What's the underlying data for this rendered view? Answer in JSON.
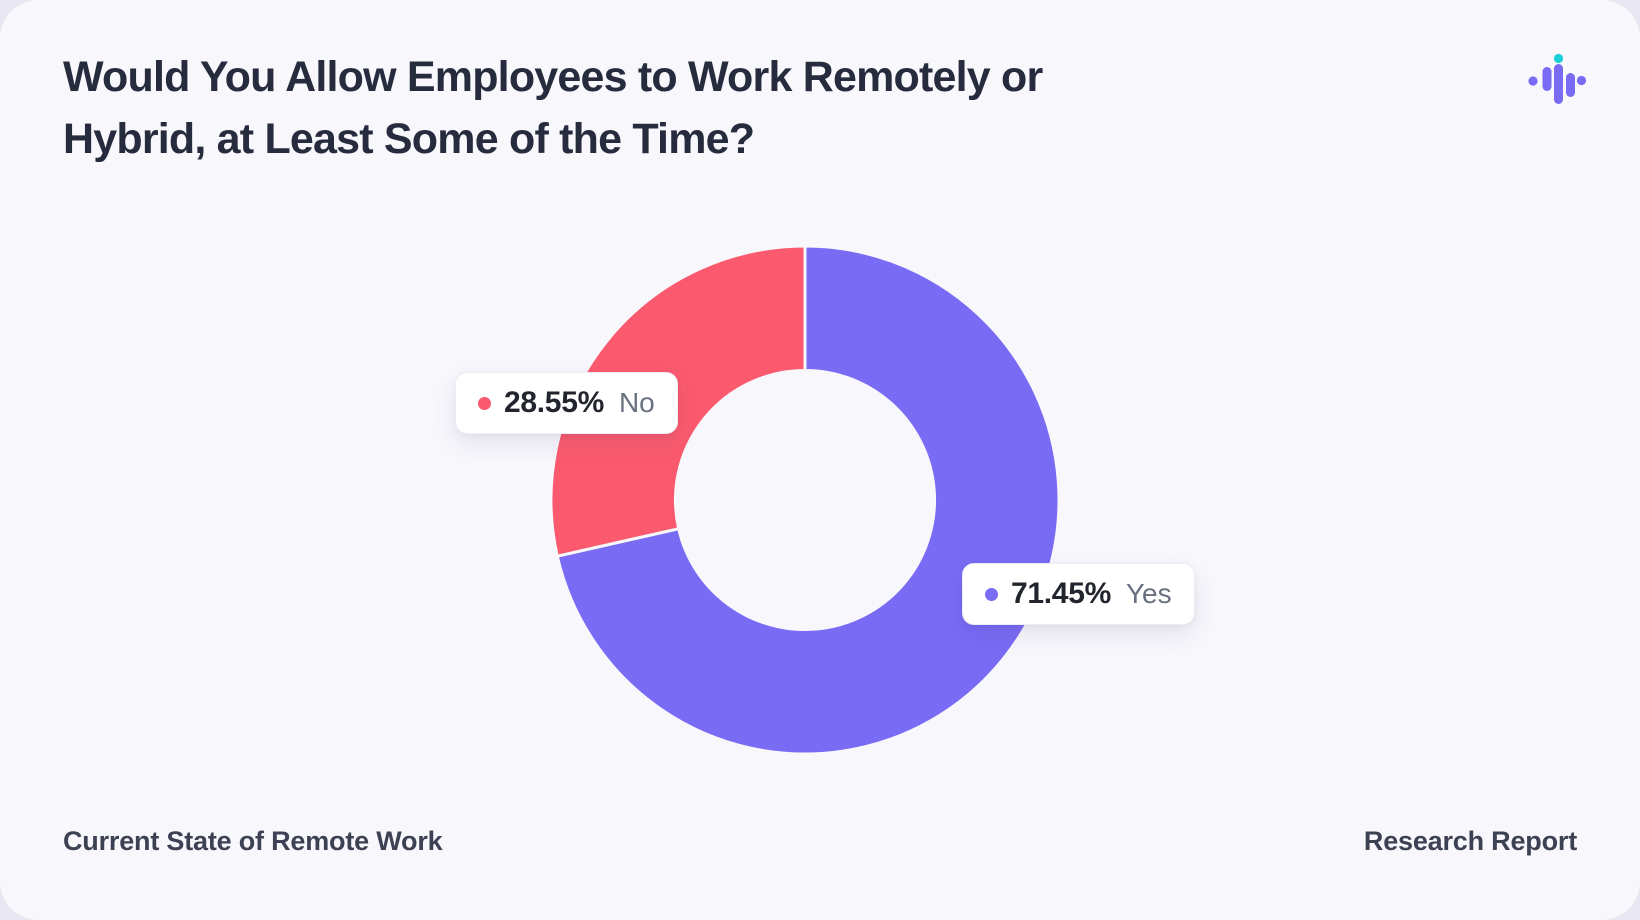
{
  "header": {
    "title_line1": "Would You Allow Employees to Work Remotely or",
    "title_line2": "Hybrid, at Least Some of the Time?"
  },
  "logo": {
    "name": "soundwave-pulse-logo",
    "bar_color": "#7A6BF5",
    "accent_color": "#19CFD6"
  },
  "chart_data": {
    "type": "pie",
    "subtype": "donut",
    "title": "Would You Allow Employees to Work Remotely or Hybrid, at Least Some of the Time?",
    "inner_radius_ratio": 0.51,
    "start_angle_deg": 0,
    "direction": "clockwise",
    "slices": [
      {
        "label": "Yes",
        "value": 71.45,
        "display": "71.45%",
        "color": "#7A6BF5"
      },
      {
        "label": "No",
        "value": 28.55,
        "display": "28.55%",
        "color": "#FB5A6E"
      }
    ],
    "divider_color": "#F8F7FC",
    "legend_position": "floating callout labels over slices"
  },
  "footer": {
    "left": "Current State of Remote Work",
    "right": "Research Report"
  },
  "colors": {
    "card_background": "#F8F7FC",
    "page_background": "#E8E6F0",
    "title_text": "#272B3E",
    "footer_text": "#3D4154",
    "callout_value_text": "#23252E",
    "callout_label_text": "#69707F",
    "callout_background": "#FFFFFF"
  }
}
